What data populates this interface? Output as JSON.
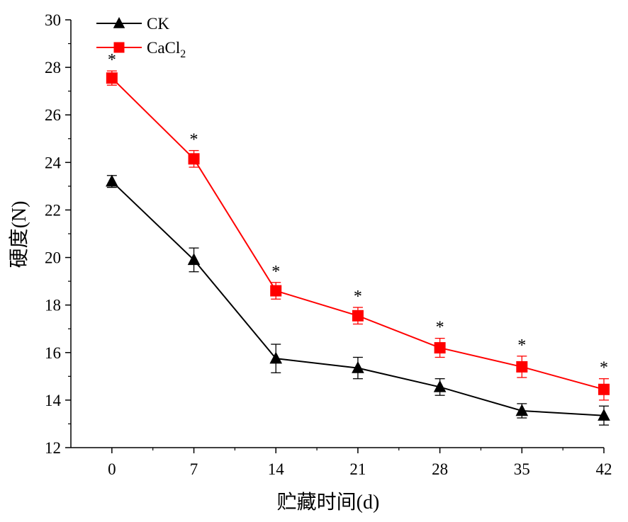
{
  "chart_data": {
    "type": "line",
    "xlabel": "贮藏时间(d)",
    "ylabel": "硬度(N)",
    "x": [
      0,
      7,
      14,
      21,
      28,
      35,
      42
    ],
    "x_ticks": [
      "0",
      "7",
      "14",
      "21",
      "28",
      "35",
      "42"
    ],
    "y_ticks": [
      "12",
      "14",
      "16",
      "18",
      "20",
      "22",
      "24",
      "26",
      "28",
      "30"
    ],
    "xlim": [
      -3.5,
      42
    ],
    "ylim": [
      12,
      30
    ],
    "grid": false,
    "legend_position": "top-left",
    "significance_symbol": "*",
    "series": [
      {
        "name": "CK",
        "legend_base": "CK",
        "legend_sub": "",
        "color": "#000000",
        "marker": "triangle",
        "values": [
          23.2,
          19.9,
          15.75,
          15.35,
          14.55,
          13.55,
          13.35
        ],
        "errors": [
          0.25,
          0.5,
          0.6,
          0.45,
          0.35,
          0.3,
          0.4
        ]
      },
      {
        "name": "CaCl2",
        "legend_base": "CaCl",
        "legend_sub": "2",
        "color": "#ff0000",
        "marker": "square",
        "values": [
          27.55,
          24.15,
          18.6,
          17.55,
          16.2,
          15.4,
          14.45
        ],
        "errors": [
          0.3,
          0.35,
          0.35,
          0.35,
          0.4,
          0.45,
          0.45
        ]
      }
    ],
    "significance": [
      true,
      true,
      true,
      true,
      true,
      true,
      true
    ]
  }
}
